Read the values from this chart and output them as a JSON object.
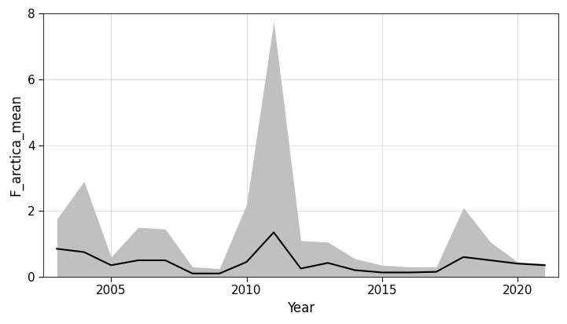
{
  "years": [
    2003,
    2004,
    2005,
    2006,
    2007,
    2008,
    2009,
    2010,
    2011,
    2012,
    2013,
    2014,
    2015,
    2016,
    2017,
    2018,
    2019,
    2020,
    2021
  ],
  "mean": [
    0.85,
    0.75,
    0.35,
    0.5,
    0.5,
    0.1,
    0.1,
    0.45,
    1.35,
    0.25,
    0.42,
    0.2,
    0.13,
    0.13,
    0.15,
    0.6,
    0.5,
    0.4,
    0.35
  ],
  "upper": [
    1.75,
    2.9,
    0.6,
    1.5,
    1.45,
    0.3,
    0.25,
    2.2,
    7.75,
    1.1,
    1.05,
    0.55,
    0.35,
    0.3,
    0.3,
    2.1,
    1.05,
    0.45,
    0.4
  ],
  "lower": [
    0.0,
    0.0,
    0.0,
    0.0,
    0.0,
    0.0,
    0.0,
    0.0,
    0.0,
    0.0,
    0.0,
    0.0,
    0.0,
    0.0,
    0.0,
    0.0,
    0.0,
    0.0,
    0.0
  ],
  "xlabel": "Year",
  "ylabel": "F_arctica_mean",
  "ylim": [
    0,
    8
  ],
  "yticks": [
    0,
    2,
    4,
    6,
    8
  ],
  "xlim": [
    2002.5,
    2021.5
  ],
  "xticks": [
    2005,
    2010,
    2015,
    2020
  ],
  "line_color": "#000000",
  "fill_color": "#c0c0c0",
  "fill_alpha": 1.0,
  "background_color": "#ffffff",
  "grid_color": "#e0e0e0",
  "line_width": 1.5,
  "font_size": 11,
  "label_font_size": 12
}
